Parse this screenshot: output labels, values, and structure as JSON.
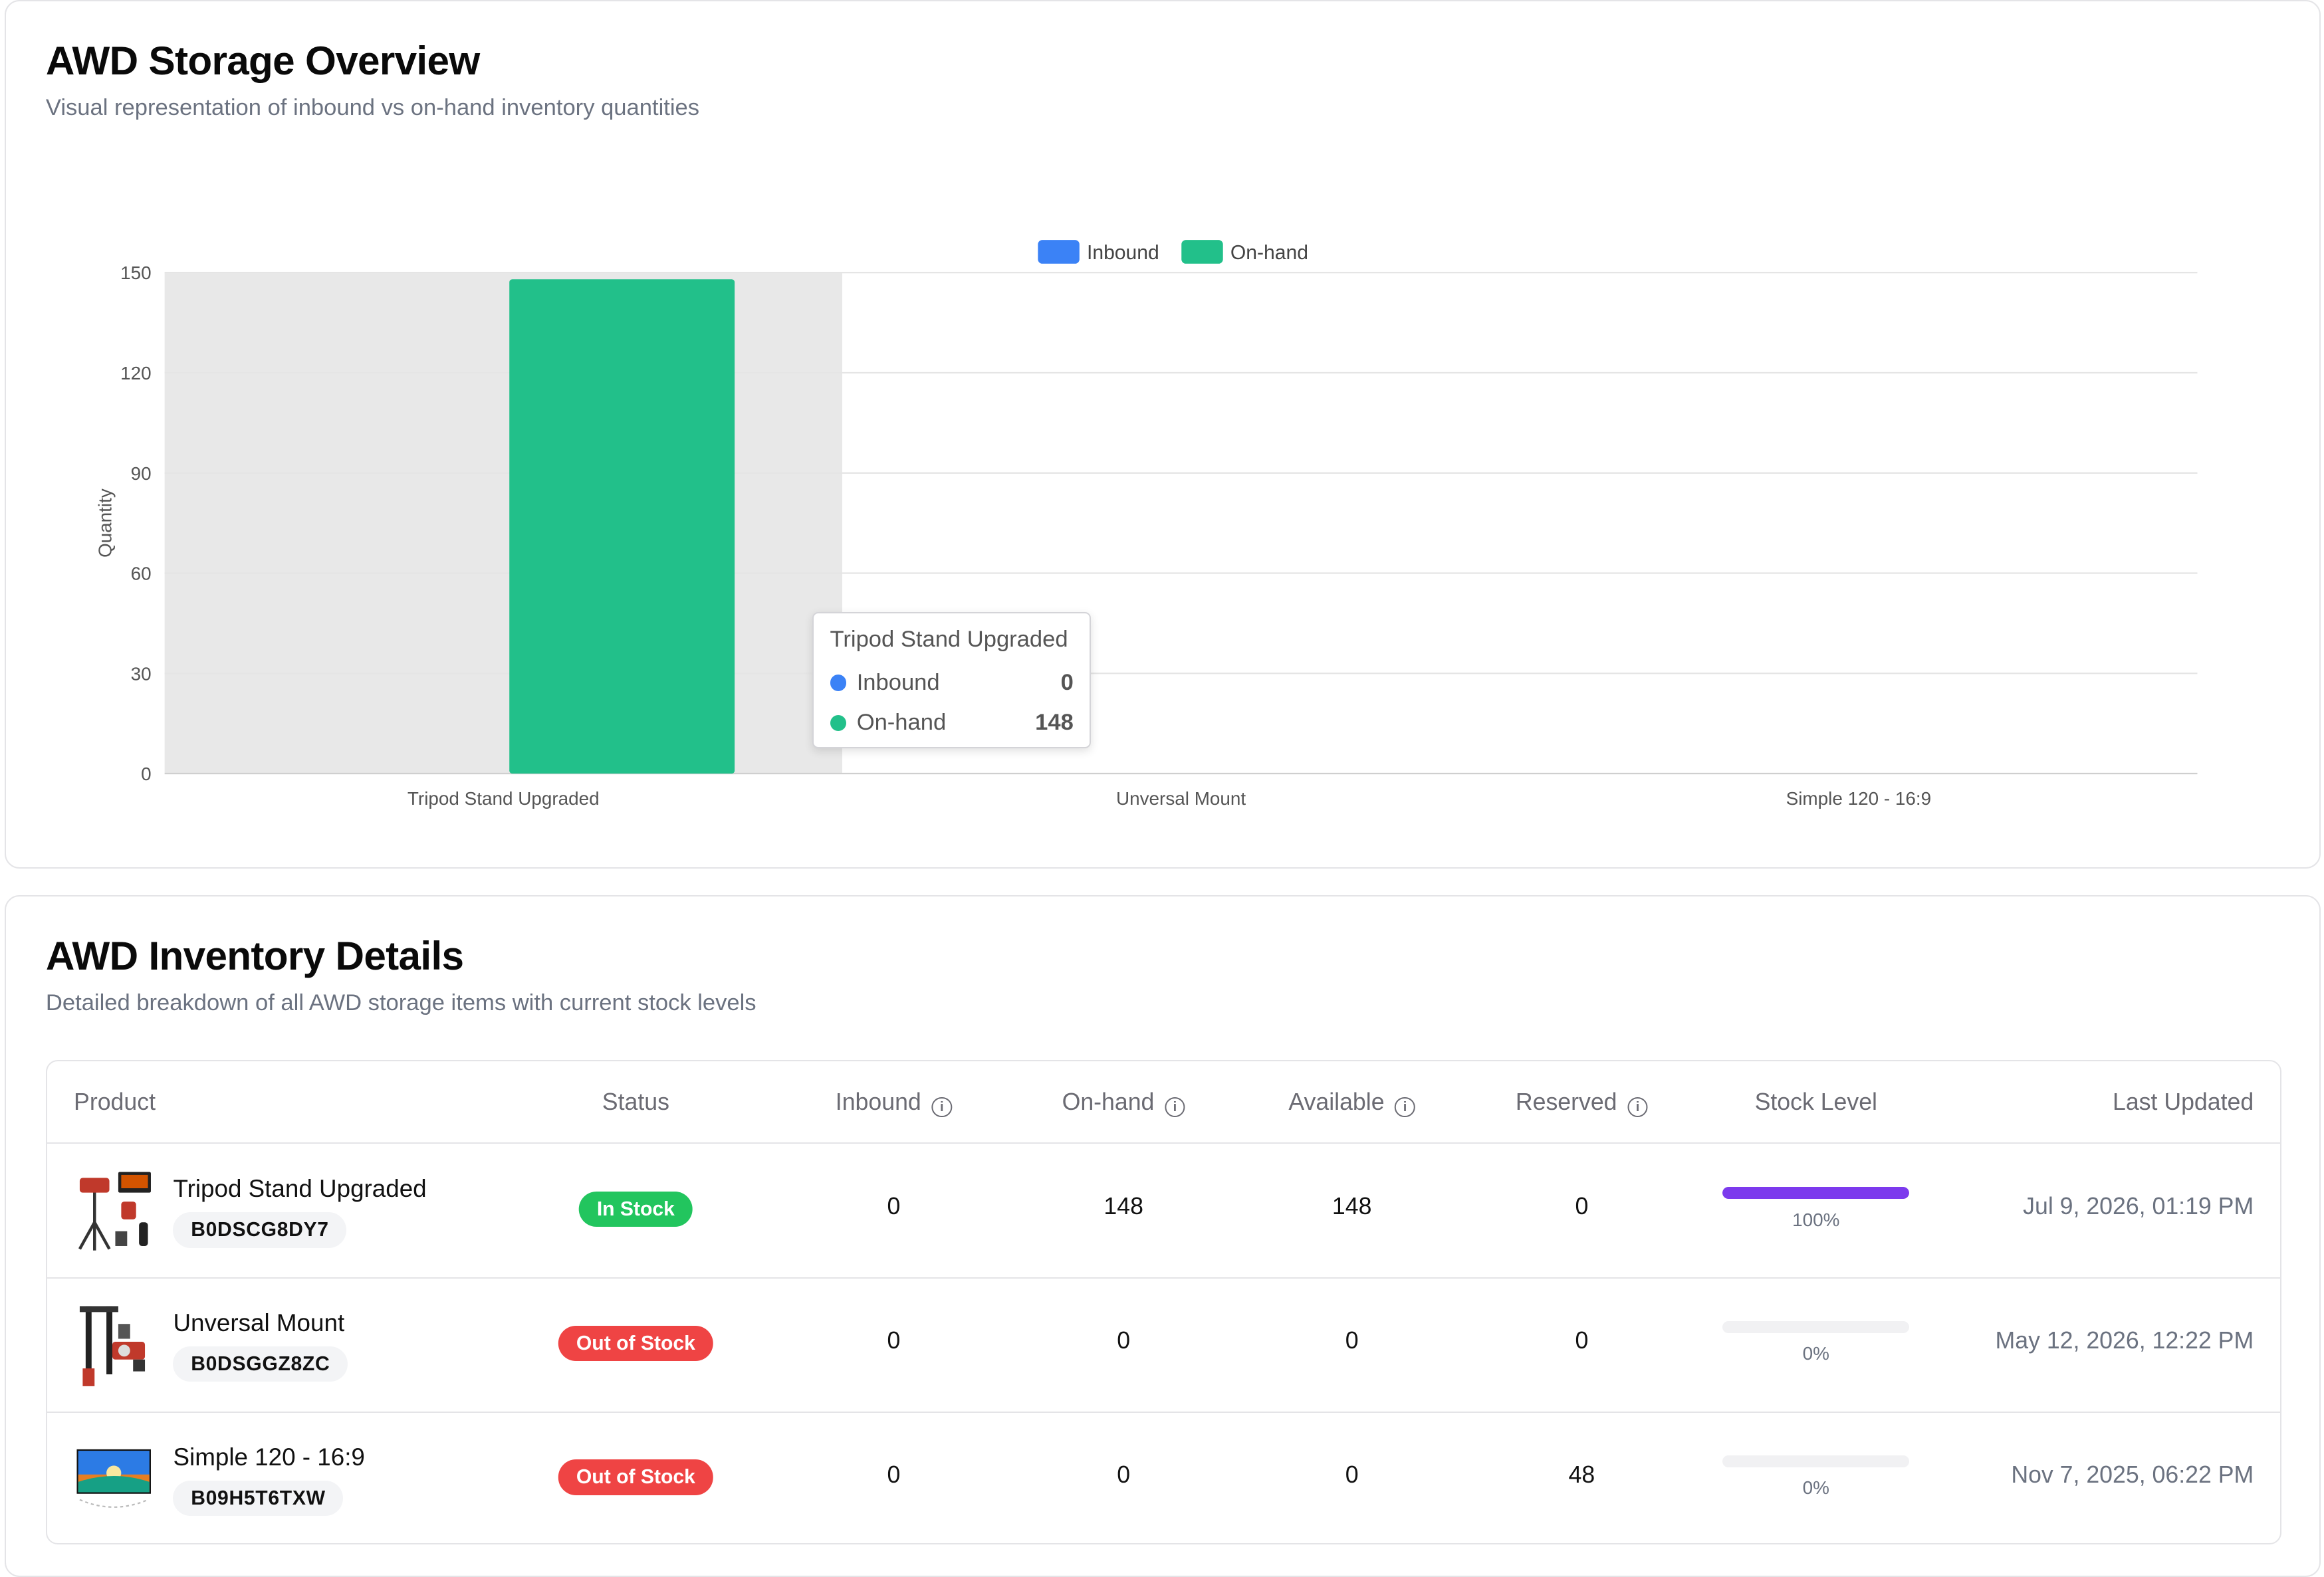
{
  "overview": {
    "title": "AWD Storage Overview",
    "subtitle": "Visual representation of inbound vs on-hand inventory quantities"
  },
  "chart_data": {
    "type": "bar",
    "categories": [
      "Tripod Stand Upgraded",
      "Unversal Mount",
      "Simple 120 - 16:9"
    ],
    "series": [
      {
        "name": "Inbound",
        "values": [
          0,
          0,
          0
        ],
        "color": "#3b82f6"
      },
      {
        "name": "On-hand",
        "values": [
          148,
          0,
          0
        ],
        "color": "#22c08a"
      }
    ],
    "xlabel": "",
    "ylabel": "Quantity",
    "ylim": [
      0,
      150
    ],
    "yticks": [
      0,
      30,
      60,
      90,
      120,
      150
    ],
    "grid": true,
    "legend": "top-center",
    "hover_category": "Tripod Stand Upgraded"
  },
  "tooltip": {
    "title": "Tripod Stand Upgraded",
    "rows": [
      {
        "name": "Inbound",
        "value": "0",
        "color": "#3b82f6"
      },
      {
        "name": "On-hand",
        "value": "148",
        "color": "#22c08a"
      }
    ]
  },
  "details": {
    "title": "AWD Inventory Details",
    "subtitle": "Detailed breakdown of all AWD storage items with current stock levels",
    "columns": {
      "product": "Product",
      "status": "Status",
      "inbound": "Inbound",
      "onhand": "On-hand",
      "available": "Available",
      "reserved": "Reserved",
      "stock_level": "Stock Level",
      "last_updated": "Last Updated"
    },
    "rows": [
      {
        "name": "Tripod Stand Upgraded",
        "asin": "B0DSCG8DY7",
        "status": "In Stock",
        "status_color": "#22c55e",
        "inbound": "0",
        "onhand": "148",
        "available": "148",
        "reserved": "0",
        "stock_level": 1.0,
        "stock_label": "100%",
        "updated": "Jul 9, 2026, 01:19 PM",
        "thumb": "tripod-stand-thumbnail"
      },
      {
        "name": "Unversal Mount",
        "asin": "B0DSGGZ8ZC",
        "status": "Out of Stock",
        "status_color": "#ef4444",
        "inbound": "0",
        "onhand": "0",
        "available": "0",
        "reserved": "0",
        "stock_level": 0.0,
        "stock_label": "0%",
        "updated": "May 12, 2026, 12:22 PM",
        "thumb": "universal-mount-thumbnail"
      },
      {
        "name": "Simple 120 - 16:9",
        "asin": "B09H5T6TXW",
        "status": "Out of Stock",
        "status_color": "#ef4444",
        "inbound": "0",
        "onhand": "0",
        "available": "0",
        "reserved": "48",
        "stock_level": 0.0,
        "stock_label": "0%",
        "updated": "Nov 7, 2025, 06:22 PM",
        "thumb": "projector-screen-thumbnail"
      }
    ]
  }
}
